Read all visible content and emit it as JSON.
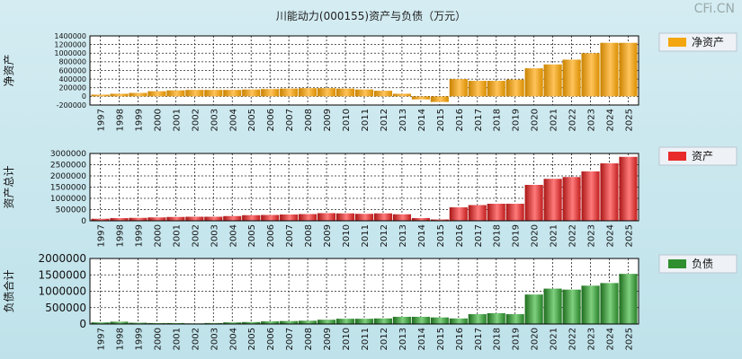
{
  "title": "川能动力(000155)资产与负债（万元）",
  "watermark": "CFi.CN",
  "colors": {
    "equity": "#f3a60f",
    "assets": "#e82a2a",
    "liabilities": "#2f8f2f"
  },
  "chart_data": [
    {
      "type": "bar",
      "ylabel": "净资产",
      "legend": "净资产",
      "categories": [
        "1997",
        "1998",
        "1999",
        "2000",
        "2001",
        "2002",
        "2003",
        "2004",
        "2005",
        "2006",
        "2007",
        "2008",
        "2009",
        "2010",
        "2011",
        "2012",
        "2013",
        "2014",
        "2015",
        "2016",
        "2017",
        "2018",
        "2019",
        "2020",
        "2021",
        "2022",
        "2023",
        "2024",
        "2025"
      ],
      "values": [
        40000,
        60000,
        80000,
        120000,
        140000,
        150000,
        150000,
        150000,
        160000,
        170000,
        180000,
        190000,
        190000,
        180000,
        160000,
        130000,
        60000,
        -70000,
        -130000,
        400000,
        360000,
        360000,
        390000,
        650000,
        740000,
        850000,
        1000000,
        1240000,
        1240000
      ],
      "yticks": [
        -200000,
        0,
        200000,
        400000,
        600000,
        800000,
        1000000,
        1200000,
        1400000
      ],
      "ylim": [
        -200000,
        1400000
      ]
    },
    {
      "type": "bar",
      "ylabel": "资产总计",
      "legend": "资产",
      "categories": [
        "1997",
        "1998",
        "1999",
        "2000",
        "2001",
        "2002",
        "2003",
        "2004",
        "2005",
        "2006",
        "2007",
        "2008",
        "2009",
        "2010",
        "2011",
        "2012",
        "2013",
        "2014",
        "2015",
        "2016",
        "2017",
        "2018",
        "2019",
        "2020",
        "2021",
        "2022",
        "2023",
        "2024",
        "2025"
      ],
      "values": [
        90000,
        120000,
        130000,
        150000,
        170000,
        180000,
        180000,
        210000,
        250000,
        260000,
        280000,
        300000,
        340000,
        330000,
        310000,
        330000,
        290000,
        120000,
        60000,
        600000,
        700000,
        760000,
        760000,
        1600000,
        1870000,
        1950000,
        2200000,
        2560000,
        2850000
      ],
      "yticks": [
        0,
        500000,
        1000000,
        1500000,
        2000000,
        2500000,
        3000000
      ],
      "ylim": [
        0,
        3000000
      ]
    },
    {
      "type": "bar",
      "ylabel": "负债合计",
      "legend": "负债",
      "categories": [
        "1997",
        "1998",
        "1999",
        "2000",
        "2001",
        "2002",
        "2003",
        "2004",
        "2005",
        "2006",
        "2007",
        "2008",
        "2009",
        "2010",
        "2011",
        "2012",
        "2013",
        "2014",
        "2015",
        "2016",
        "2017",
        "2018",
        "2019",
        "2020",
        "2021",
        "2022",
        "2023",
        "2024",
        "2025"
      ],
      "values": [
        50000,
        70000,
        40000,
        30000,
        30000,
        20000,
        30000,
        50000,
        60000,
        80000,
        90000,
        100000,
        130000,
        160000,
        160000,
        170000,
        220000,
        220000,
        200000,
        170000,
        300000,
        330000,
        300000,
        900000,
        1080000,
        1050000,
        1170000,
        1250000,
        1530000
      ],
      "yticks": [
        0,
        500000,
        1000000,
        1500000,
        2000000
      ],
      "ylim": [
        0,
        2000000
      ]
    }
  ]
}
